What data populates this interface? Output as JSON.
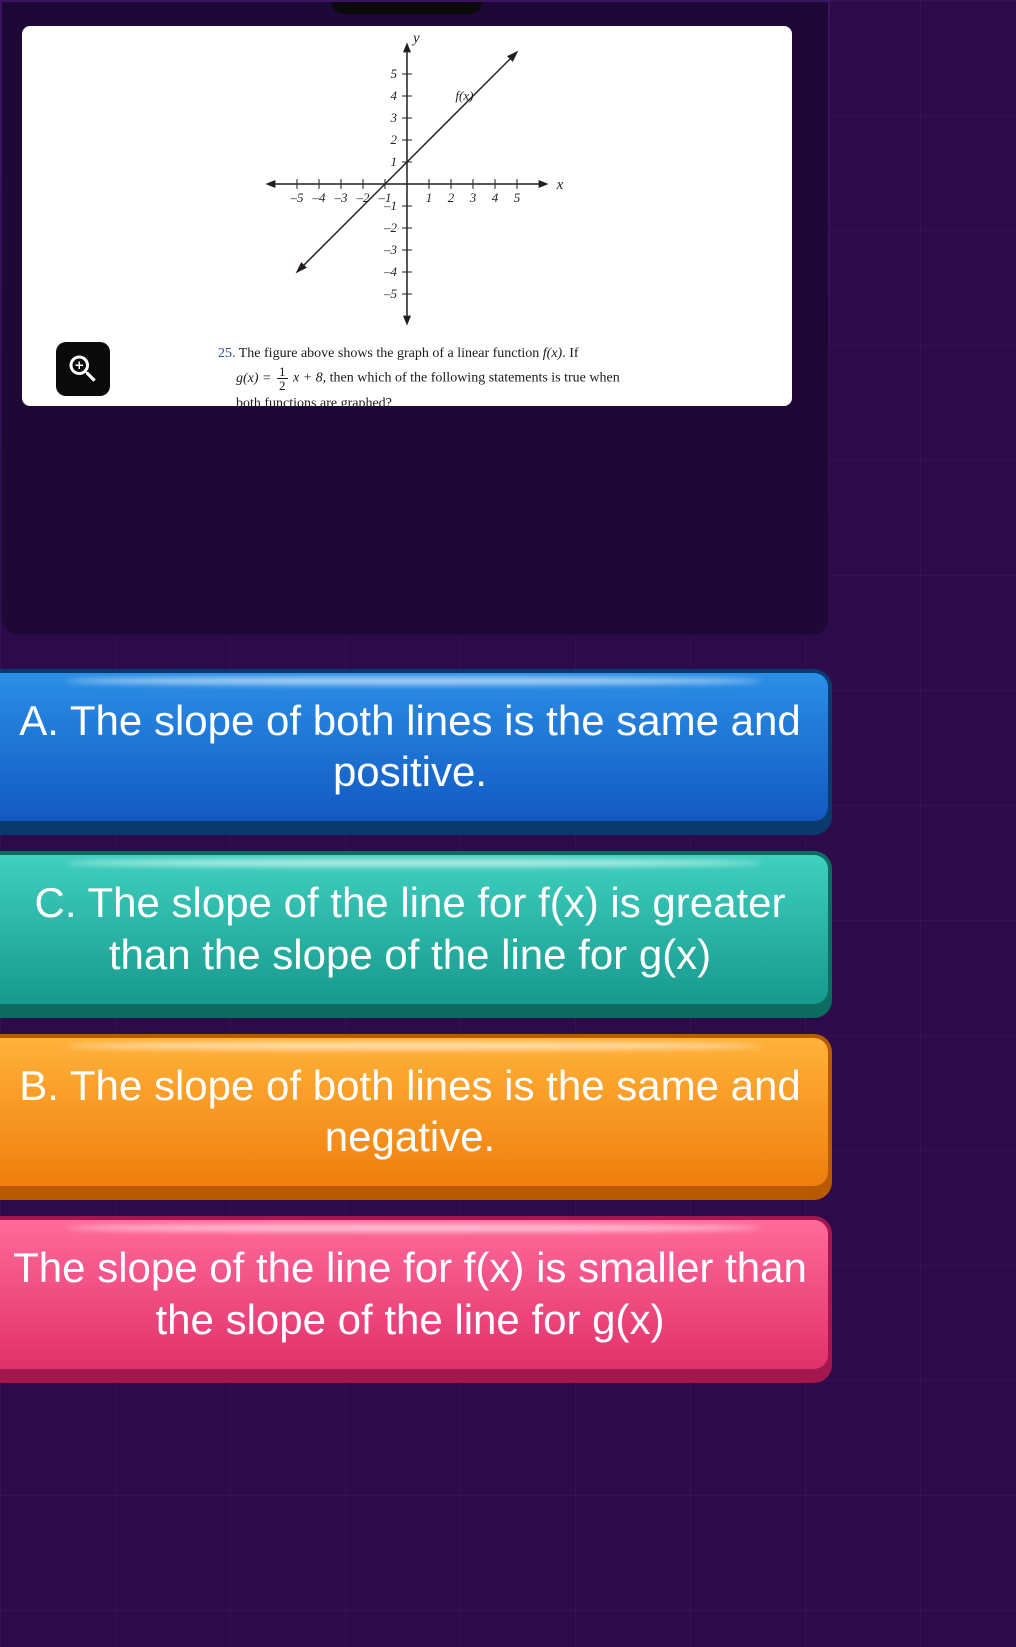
{
  "question": {
    "number": "25.",
    "prompt_part1": "The figure above shows the graph of a linear function ",
    "fx": "f(x)",
    "prompt_part2": ". If",
    "gx_lhs": "g(x) =",
    "gx_frac_num": "1",
    "gx_frac_den": "2",
    "gx_rhs": "x + 8,",
    "prompt_part3": " then which of the following statements is true when",
    "prompt_part4": "both functions are graphed?"
  },
  "chart": {
    "type": "line",
    "x_label": "x",
    "y_label": "y",
    "fx_label": "f(x)",
    "xlim": [
      -5.8,
      5.8
    ],
    "ylim": [
      -5.8,
      5.8
    ],
    "x_ticks": [
      -5,
      -4,
      -3,
      -2,
      -1,
      1,
      2,
      3,
      4,
      5
    ],
    "y_ticks": [
      -5,
      -4,
      -3,
      -2,
      -1,
      1,
      2,
      3,
      4,
      5
    ],
    "line_points": [
      [
        -5,
        -4
      ],
      [
        5,
        6
      ]
    ],
    "axis_color": "#231f20",
    "line_color": "#231f20",
    "background_color": "#ffffff",
    "tick_length": 5,
    "line_width": 1.5
  },
  "answers": [
    {
      "letter": "A.",
      "text": "The slope of both lines is the same and positive.",
      "color": "blue"
    },
    {
      "letter": "C.",
      "text": "The slope of the line for f(x) is greater than the slope of the line for g(x)",
      "color": "teal"
    },
    {
      "letter": "B.",
      "text": "The slope of both lines is the same and negative.",
      "color": "orange"
    },
    {
      "letter": "",
      "text": "The slope of the line for f(x) is smaller than the slope of the line for g(x)",
      "color": "pink"
    }
  ],
  "colors": {
    "page_bg": "#2d0a4a",
    "card_bg": "#1e0836",
    "blue": "#1259c2",
    "teal": "#17998d",
    "orange": "#f07e0e",
    "pink": "#e1316a",
    "text": "#ffffff"
  }
}
